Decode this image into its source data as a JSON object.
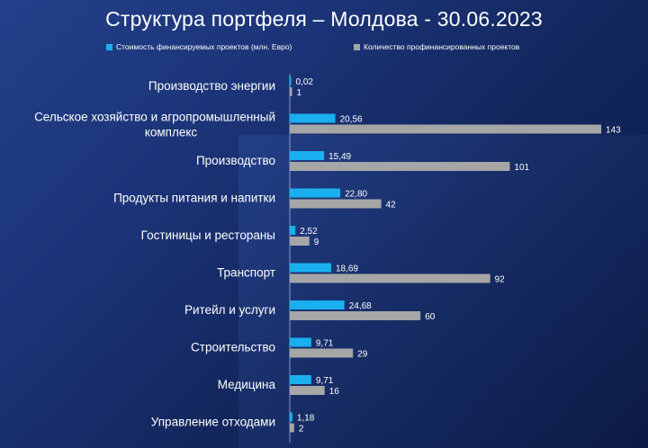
{
  "chart_data": {
    "type": "bar",
    "orientation": "horizontal",
    "title": "Структура портфеля – Молдова - 30.06.2023",
    "legend_position": "top",
    "categories": [
      [
        "Производство энергии"
      ],
      [
        "Сельское хозяйство и агропромышленный",
        "комплекс"
      ],
      [
        "Производство"
      ],
      [
        "Продукты питания и напитки"
      ],
      [
        "Гостиницы и рестораны"
      ],
      [
        "Транспорт"
      ],
      [
        "Ритейл и услуги"
      ],
      [
        "Строительство"
      ],
      [
        "Медицина"
      ],
      [
        "Управление отходами"
      ]
    ],
    "series": [
      {
        "name": "Стоимость финансируемых проектов (млн. Евро)",
        "color": "#1ab0f0",
        "values": [
          0.02,
          20.56,
          15.49,
          22.8,
          2.52,
          18.69,
          24.68,
          9.71,
          9.71,
          1.18
        ],
        "labels": [
          "0,02",
          "20,56",
          "15,49",
          "22,80",
          "2,52",
          "18,69",
          "24,68",
          "9,71",
          "9,71",
          "1,18"
        ]
      },
      {
        "name": "Количество профинансированных проектов",
        "color": "#a6a6a6",
        "values": [
          1,
          143,
          101,
          42,
          9,
          92,
          60,
          29,
          16,
          2
        ],
        "labels": [
          "1",
          "143",
          "101",
          "42",
          "9",
          "92",
          "60",
          "29",
          "16",
          "2"
        ]
      }
    ],
    "grid": false
  }
}
